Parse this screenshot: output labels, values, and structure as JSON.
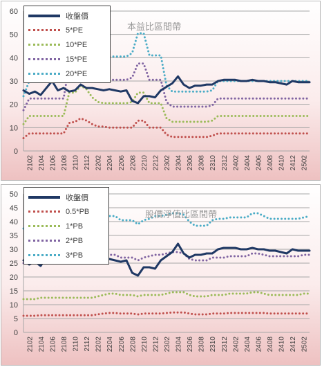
{
  "chart_data": [
    {
      "type": "line",
      "title": "本益比區間帶",
      "x": [
        "2101",
        "2102",
        "2103",
        "2104",
        "2105",
        "2106",
        "2107",
        "2108",
        "2109",
        "2110",
        "2111",
        "2112",
        "2201",
        "2202",
        "2203",
        "2204",
        "2205",
        "2206",
        "2207",
        "2208",
        "2209",
        "2210",
        "2211",
        "2212",
        "2301",
        "2302",
        "2303",
        "2304",
        "2305",
        "2306",
        "2307",
        "2308",
        "2309",
        "2310",
        "2311",
        "2312",
        "2401",
        "2402",
        "2403",
        "2404",
        "2405",
        "2406",
        "2407",
        "2408",
        "2409",
        "2410",
        "2411",
        "2412",
        "2501",
        "2502",
        "2503"
      ],
      "xticks": [
        "2102",
        "2104",
        "2106",
        "2108",
        "2110",
        "2112",
        "2202",
        "2204",
        "2206",
        "2208",
        "2210",
        "2212",
        "2302",
        "2304",
        "2306",
        "2308",
        "2310",
        "2312",
        "2402",
        "2404",
        "2406",
        "2408",
        "2410",
        "2412",
        "2502"
      ],
      "ylim": [
        0,
        60
      ],
      "yticks": [
        0,
        10,
        20,
        30,
        40,
        50,
        60
      ],
      "grid": true,
      "legend_position": "top-left",
      "series": [
        {
          "name": "收盤價",
          "color": "#1f3864",
          "style": "solid",
          "values": [
            26,
            24.5,
            25.5,
            24,
            27,
            30,
            26,
            27,
            25.5,
            26,
            28.5,
            27,
            27,
            26.5,
            26,
            26.5,
            26,
            25.5,
            26,
            21.5,
            20.5,
            23.5,
            23.5,
            23,
            26,
            27.5,
            29,
            32,
            28.5,
            27,
            28,
            28,
            28.5,
            28.5,
            30,
            30.5,
            30.5,
            30.5,
            30,
            30,
            30.5,
            30,
            30,
            29.5,
            29.5,
            29,
            28.5,
            30,
            29.5,
            29.5,
            29.5
          ]
        },
        {
          "name": "5*PE",
          "color": "#c0504d",
          "style": "dotted",
          "values": [
            5.5,
            7.5,
            7.5,
            7.5,
            7.5,
            7.5,
            7.5,
            7.5,
            12,
            12.5,
            14,
            13,
            11.5,
            10.5,
            10.5,
            10,
            10,
            10,
            10,
            10,
            13,
            13,
            10,
            10,
            10,
            7,
            6,
            6,
            6,
            6,
            6,
            6,
            6,
            6.5,
            7.5,
            7.5,
            7.5,
            7.5,
            7.5,
            7.5,
            7.5,
            7.5,
            7.5,
            7.5,
            7.5,
            7.5,
            7.5,
            7.5,
            7.5,
            7.5,
            7.5
          ]
        },
        {
          "name": "10*PE",
          "color": "#9bbb59",
          "style": "dotted",
          "values": [
            11.5,
            15,
            15,
            15,
            15,
            15,
            15,
            15,
            25,
            25,
            28,
            26.5,
            23,
            21,
            20.5,
            20.5,
            20.5,
            20.5,
            20.5,
            21,
            25,
            25,
            20.5,
            20.5,
            20.5,
            14,
            12.5,
            12.5,
            12.5,
            12.5,
            12.5,
            12.5,
            12.5,
            13,
            15,
            15,
            15,
            15,
            15,
            15,
            15,
            15,
            15,
            15,
            15,
            15,
            15,
            15,
            15,
            15,
            15
          ]
        },
        {
          "name": "15*PE",
          "color": "#8064a2",
          "style": "dotted",
          "values": [
            17.5,
            22.5,
            22.5,
            22.5,
            22.5,
            22.5,
            22.5,
            22.5,
            37,
            37.5,
            41.5,
            40,
            34.5,
            31.5,
            30.5,
            30.5,
            30.5,
            30.5,
            30.5,
            31.5,
            37.5,
            37.5,
            30.5,
            30.5,
            30.5,
            21,
            19,
            19,
            19,
            19,
            19,
            19,
            19,
            19.5,
            22.5,
            22.5,
            22.5,
            22.5,
            22.5,
            22.5,
            22.5,
            22.5,
            22.5,
            22.5,
            22.5,
            22.5,
            22.5,
            22.5,
            22.5,
            22.5,
            22.5
          ]
        },
        {
          "name": "20*PE",
          "color": "#4bacc6",
          "style": "dotted",
          "values": [
            23.5,
            30,
            30,
            30,
            30,
            30,
            30,
            30,
            49.5,
            50,
            55.5,
            53.5,
            46,
            42,
            41,
            40.5,
            40.5,
            40.5,
            40.5,
            42,
            50.5,
            50.5,
            41,
            41,
            41,
            28,
            25.5,
            25.5,
            25.5,
            25.5,
            25.5,
            25.5,
            25.5,
            26,
            30,
            30,
            30,
            30,
            30,
            30,
            30,
            30,
            30,
            30,
            30,
            30,
            30,
            30,
            30,
            30,
            30
          ]
        }
      ]
    },
    {
      "type": "line",
      "title": "股價淨值比區間帶",
      "x": [
        "2101",
        "2102",
        "2103",
        "2104",
        "2105",
        "2106",
        "2107",
        "2108",
        "2109",
        "2110",
        "2111",
        "2112",
        "2201",
        "2202",
        "2203",
        "2204",
        "2205",
        "2206",
        "2207",
        "2208",
        "2209",
        "2210",
        "2211",
        "2212",
        "2301",
        "2302",
        "2303",
        "2304",
        "2305",
        "2306",
        "2307",
        "2308",
        "2309",
        "2310",
        "2311",
        "2312",
        "2401",
        "2402",
        "2403",
        "2404",
        "2405",
        "2406",
        "2407",
        "2408",
        "2409",
        "2410",
        "2411",
        "2412",
        "2501",
        "2502",
        "2503"
      ],
      "xticks": [
        "2102",
        "2104",
        "2106",
        "2108",
        "2110",
        "2112",
        "2202",
        "2204",
        "2206",
        "2208",
        "2210",
        "2212",
        "2302",
        "2304",
        "2306",
        "2308",
        "2310",
        "2312",
        "2402",
        "2404",
        "2406",
        "2408",
        "2410",
        "2412",
        "2502"
      ],
      "ylim": [
        0,
        50
      ],
      "yticks": [
        0,
        5,
        10,
        15,
        20,
        25,
        30,
        35,
        40,
        45,
        50
      ],
      "grid": true,
      "legend_position": "top-left",
      "series": [
        {
          "name": "收盤價",
          "color": "#1f3864",
          "style": "solid",
          "values": [
            26,
            24.5,
            25.5,
            24,
            27,
            30,
            26,
            27,
            25.5,
            26,
            28.5,
            27,
            27,
            26.5,
            26,
            26.5,
            26,
            25.5,
            26,
            21.5,
            20.5,
            23.5,
            23.5,
            23,
            26,
            27.5,
            29,
            32,
            28.5,
            27,
            28,
            28,
            28.5,
            28.5,
            30,
            30.5,
            30.5,
            30.5,
            30,
            30,
            30.5,
            30,
            30,
            29.5,
            29.5,
            29,
            28.5,
            30,
            29.5,
            29.5,
            29.5
          ]
        },
        {
          "name": "0.5*PB",
          "color": "#c0504d",
          "style": "dotted",
          "values": [
            6,
            6,
            6,
            6.2,
            6.2,
            6.2,
            6.2,
            6.2,
            6.2,
            6.2,
            6.2,
            6.2,
            6.2,
            6.5,
            6.8,
            7,
            7,
            6.8,
            6.8,
            6.8,
            6.5,
            6.8,
            6.8,
            6.8,
            6.8,
            7,
            7.2,
            7.2,
            7.2,
            6.8,
            6.5,
            6.5,
            6.5,
            6.8,
            6.8,
            6.8,
            7,
            7,
            7,
            7,
            7,
            7,
            7,
            6.8,
            6.8,
            6.8,
            6.8,
            6.8,
            6.8,
            6.8,
            6.8
          ]
        },
        {
          "name": "1*PB",
          "color": "#9bbb59",
          "style": "dotted",
          "values": [
            12,
            12,
            12,
            12.5,
            12.5,
            12.5,
            12.5,
            12.5,
            12.5,
            12.5,
            12.5,
            12.5,
            12.5,
            13,
            13.5,
            14,
            14,
            13.5,
            13.5,
            13.5,
            13,
            13.5,
            13.5,
            13.5,
            13.5,
            14,
            14.5,
            14.5,
            14.5,
            13.5,
            13,
            13,
            13,
            13.5,
            13.5,
            13.5,
            14,
            14,
            14,
            14,
            14.5,
            14.5,
            14,
            13.5,
            13.5,
            13.5,
            13.5,
            13.5,
            13.5,
            14,
            14
          ]
        },
        {
          "name": "2*PB",
          "color": "#8064a2",
          "style": "dotted",
          "values": [
            25,
            25,
            25,
            25.5,
            25.5,
            25,
            25,
            25,
            25,
            25,
            25,
            25,
            25,
            26,
            27,
            28,
            28,
            27,
            27,
            27,
            26,
            27,
            27.5,
            28,
            28,
            28.5,
            29,
            29,
            28.5,
            26.5,
            26,
            26,
            26,
            27,
            27,
            27,
            27.5,
            27.5,
            27.5,
            27.5,
            28.5,
            28.5,
            28,
            27.5,
            27.5,
            27.5,
            27.5,
            27.5,
            27.5,
            28,
            28
          ]
        },
        {
          "name": "3*PB",
          "color": "#4bacc6",
          "style": "dotted",
          "values": [
            37.5,
            37.5,
            37.5,
            38,
            38,
            38,
            38,
            38,
            38,
            38,
            38,
            38,
            38,
            39,
            40.5,
            42,
            42,
            40.5,
            40.5,
            40.5,
            39,
            40.5,
            41,
            42,
            42,
            42.5,
            43,
            43,
            42.5,
            40,
            38.5,
            38.5,
            38.5,
            40.5,
            41,
            41,
            41.5,
            41.5,
            41.5,
            41.5,
            43,
            43,
            42,
            41,
            41,
            41,
            41,
            41,
            41,
            41.5,
            42
          ]
        }
      ]
    }
  ]
}
